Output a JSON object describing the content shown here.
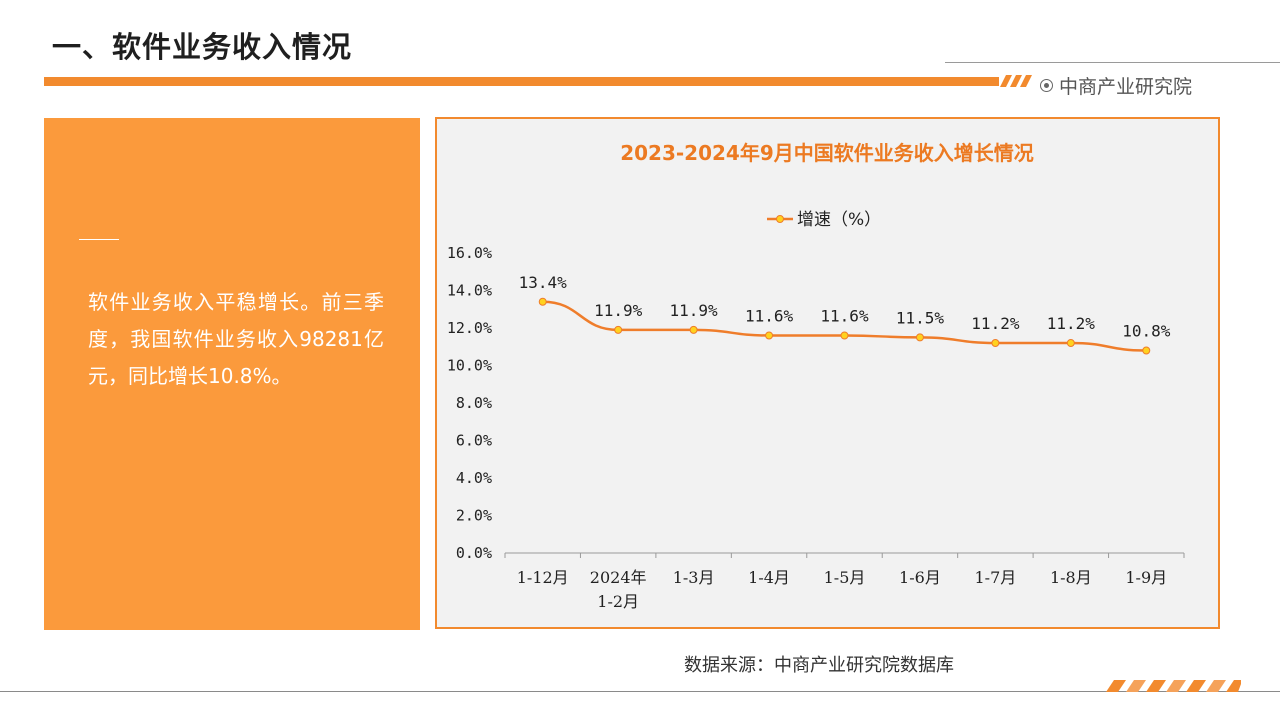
{
  "header": {
    "title": "一、软件业务收入情况",
    "brand": "中商产业研究院"
  },
  "summary": {
    "text": "软件业务收入平稳增长。前三季度，我国软件业务收入98281亿元，同比增长10.8%。"
  },
  "source": {
    "text": "数据来源：中商产业研究院数据库"
  },
  "colors": {
    "accent": "#f28a2e",
    "panel": "#fb9a3c",
    "marker": "#ffd21f"
  },
  "chart_data": {
    "type": "line",
    "title": "2023-2024年9月中国软件业务收入增长情况",
    "categories": [
      "1-12月",
      "2024年\n1-2月",
      "1-3月",
      "1-4月",
      "1-5月",
      "1-6月",
      "1-7月",
      "1-8月",
      "1-9月"
    ],
    "series": [
      {
        "name": "增速（%）",
        "values": [
          13.4,
          11.9,
          11.9,
          11.6,
          11.6,
          11.5,
          11.2,
          11.2,
          10.8
        ],
        "labels": [
          "13.4%",
          "11.9%",
          "11.9%",
          "11.6%",
          "11.6%",
          "11.5%",
          "11.2%",
          "11.2%",
          "10.8%"
        ]
      }
    ],
    "ylim": [
      0,
      16
    ],
    "yticks": [
      "0.0%",
      "2.0%",
      "4.0%",
      "6.0%",
      "8.0%",
      "10.0%",
      "12.0%",
      "14.0%",
      "16.0%"
    ],
    "xlabel": "",
    "ylabel": "",
    "legend": "top-center",
    "grid": false
  }
}
